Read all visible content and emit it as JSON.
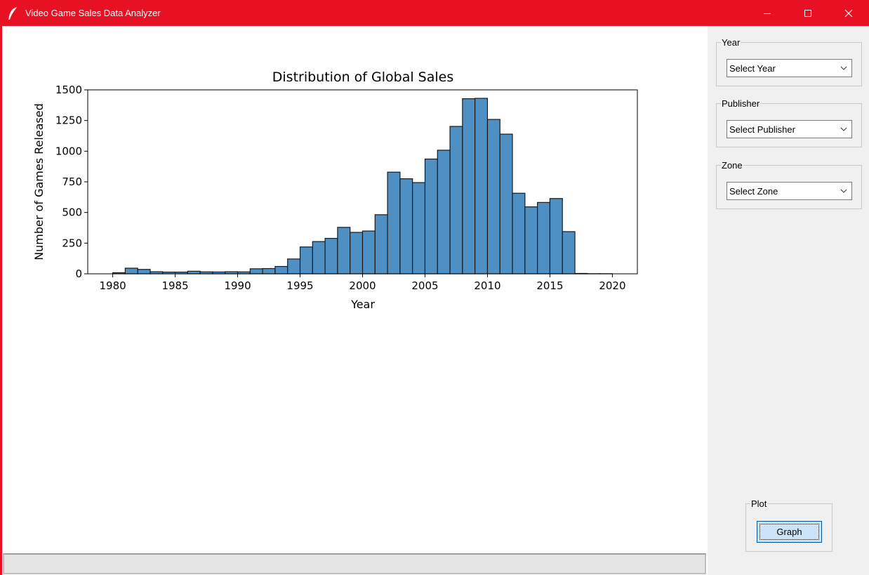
{
  "window": {
    "title": "Video Game Sales Data Analyzer",
    "titlebar_color": "#e81123",
    "icons": {
      "app": "feather-icon",
      "minimize": "minimize-icon",
      "maximize": "maximize-icon",
      "close": "close-icon"
    }
  },
  "sidebar": {
    "year_group": {
      "label": "Year",
      "selected": "Select Year"
    },
    "publisher_group": {
      "label": "Publisher",
      "selected": "Select Publisher"
    },
    "zone_group": {
      "label": "Zone",
      "selected": "Select Zone"
    },
    "plot_group": {
      "label": "Plot",
      "button_label": "Graph"
    }
  },
  "statusbar": {
    "text": ""
  },
  "chart_data": {
    "type": "bar",
    "title": "Distribution of Global Sales",
    "xlabel": "Year",
    "ylabel": "Number of Games Released",
    "xlim": [
      1978,
      2022
    ],
    "ylim": [
      0,
      1500
    ],
    "xticks": [
      "1980",
      "1985",
      "1990",
      "1995",
      "2000",
      "2005",
      "2010",
      "2015",
      "2020"
    ],
    "yticks": [
      "0",
      "250",
      "500",
      "750",
      "1000",
      "1250",
      "1500"
    ],
    "bar_color": "#4f90c4",
    "edge_color": "#1a1a1a",
    "bins": [
      {
        "start": 1980.0,
        "end": 1981.0,
        "value": 9
      },
      {
        "start": 1981.0,
        "end": 1982.0,
        "value": 46
      },
      {
        "start": 1982.0,
        "end": 1983.0,
        "value": 36
      },
      {
        "start": 1983.0,
        "end": 1984.0,
        "value": 17
      },
      {
        "start": 1984.0,
        "end": 1985.0,
        "value": 14
      },
      {
        "start": 1985.0,
        "end": 1986.0,
        "value": 14
      },
      {
        "start": 1986.0,
        "end": 1987.0,
        "value": 21
      },
      {
        "start": 1987.0,
        "end": 1988.0,
        "value": 16
      },
      {
        "start": 1988.0,
        "end": 1989.0,
        "value": 15
      },
      {
        "start": 1989.0,
        "end": 1990.0,
        "value": 17
      },
      {
        "start": 1990.0,
        "end": 1991.0,
        "value": 16
      },
      {
        "start": 1991.0,
        "end": 1992.0,
        "value": 41
      },
      {
        "start": 1992.0,
        "end": 1993.0,
        "value": 43
      },
      {
        "start": 1993.0,
        "end": 1994.0,
        "value": 60
      },
      {
        "start": 1994.0,
        "end": 1995.0,
        "value": 121
      },
      {
        "start": 1995.0,
        "end": 1996.0,
        "value": 219
      },
      {
        "start": 1996.0,
        "end": 1997.0,
        "value": 263
      },
      {
        "start": 1997.0,
        "end": 1998.0,
        "value": 289
      },
      {
        "start": 1998.0,
        "end": 1999.0,
        "value": 379
      },
      {
        "start": 1999.0,
        "end": 2000.0,
        "value": 338
      },
      {
        "start": 2000.0,
        "end": 2001.0,
        "value": 349
      },
      {
        "start": 2001.0,
        "end": 2002.0,
        "value": 482
      },
      {
        "start": 2002.0,
        "end": 2003.0,
        "value": 829
      },
      {
        "start": 2003.0,
        "end": 2004.0,
        "value": 775
      },
      {
        "start": 2004.0,
        "end": 2005.0,
        "value": 744
      },
      {
        "start": 2005.0,
        "end": 2006.0,
        "value": 936
      },
      {
        "start": 2006.0,
        "end": 2007.0,
        "value": 1008
      },
      {
        "start": 2007.0,
        "end": 2008.0,
        "value": 1202
      },
      {
        "start": 2008.0,
        "end": 2009.0,
        "value": 1428
      },
      {
        "start": 2009.0,
        "end": 2010.0,
        "value": 1431
      },
      {
        "start": 2010.0,
        "end": 2011.0,
        "value": 1259
      },
      {
        "start": 2011.0,
        "end": 2012.0,
        "value": 1139
      },
      {
        "start": 2012.0,
        "end": 2013.0,
        "value": 657
      },
      {
        "start": 2013.0,
        "end": 2014.0,
        "value": 546
      },
      {
        "start": 2014.0,
        "end": 2015.0,
        "value": 582
      },
      {
        "start": 2015.0,
        "end": 2016.0,
        "value": 614
      },
      {
        "start": 2016.0,
        "end": 2017.0,
        "value": 344
      },
      {
        "start": 2017.0,
        "end": 2018.0,
        "value": 3
      },
      {
        "start": 2018.0,
        "end": 2019.0,
        "value": 1
      },
      {
        "start": 2019.0,
        "end": 2020.0,
        "value": 1
      }
    ]
  }
}
